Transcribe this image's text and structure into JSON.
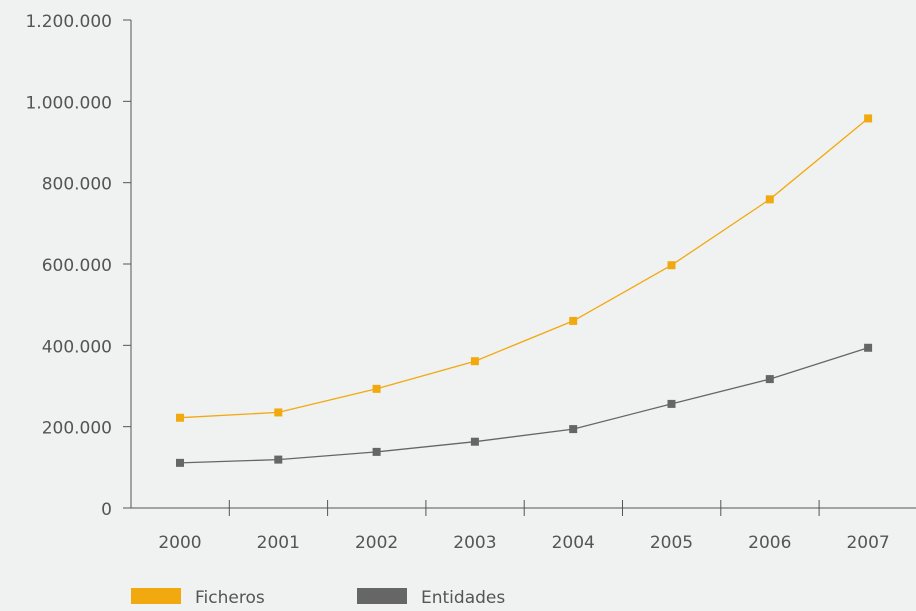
{
  "chart_data": {
    "type": "line",
    "categories": [
      "2000",
      "2001",
      "2002",
      "2003",
      "2004",
      "2005",
      "2006",
      "2007"
    ],
    "y_ticks": [
      "0",
      "200.000",
      "400.000",
      "600.000",
      "800.000",
      "1.000.000",
      "1.200.000"
    ],
    "y_tick_values": [
      0,
      200000,
      400000,
      600000,
      800000,
      1000000,
      1200000
    ],
    "ylim": [
      0,
      1200000
    ],
    "grid": false,
    "legend_position": "bottom-left",
    "series": [
      {
        "name": "Ficheros",
        "color": "#f2a90f",
        "values": [
          222000,
          235000,
          293000,
          361000,
          460000,
          597000,
          759000,
          958000
        ]
      },
      {
        "name": "Entidades",
        "color": "#666666",
        "values": [
          111000,
          119000,
          138000,
          163000,
          194000,
          256000,
          317000,
          394000
        ]
      }
    ]
  }
}
